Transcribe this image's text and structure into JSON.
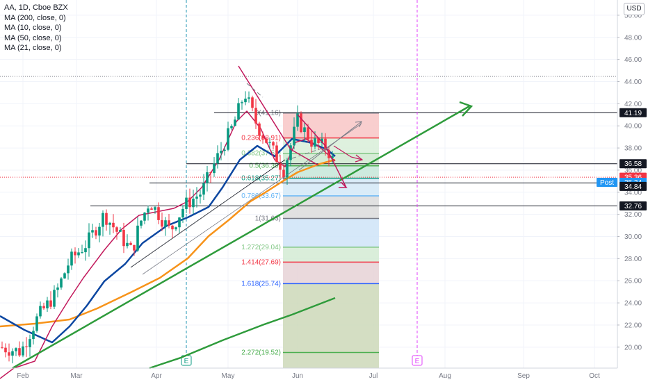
{
  "legend": {
    "title": "AA, 1D, Cboe BZX",
    "ma200": "MA (200, close, 0)",
    "ma10": "MA (10, close, 0)",
    "ma50": "MA (50, close, 0)",
    "ma21": "MA (21, close, 0)"
  },
  "currency_button": "USD",
  "chart_data": {
    "type": "candlestick",
    "symbol": "AA",
    "interval": "1D",
    "exchange": "Cboe BZX",
    "x_ticks": [
      "Feb",
      "Mar",
      "Apr",
      "May",
      "Jun",
      "Jul",
      "Aug",
      "Sep",
      "Oct"
    ],
    "y_ticks": [
      "50.00",
      "48.00",
      "46.00",
      "44.00",
      "42.00",
      "40.00",
      "38.00",
      "36.00",
      "34.00",
      "32.00",
      "30.00",
      "28.00",
      "26.00",
      "24.00",
      "22.00",
      "20.00"
    ],
    "ylim": [
      18.0,
      51.5
    ],
    "price_labels": [
      {
        "text": "41.19",
        "value": 41.19,
        "style": "dark"
      },
      {
        "text": "36.58",
        "value": 36.58,
        "style": "dark"
      },
      {
        "text": "35.36",
        "value": 35.36,
        "style": "red"
      },
      {
        "text": "Post",
        "value": 35.34,
        "style": "blue-tag"
      },
      {
        "text": "35.34",
        "value": 35.34,
        "style": "blue"
      },
      {
        "text": "34.84",
        "value": 34.84,
        "style": "dark"
      },
      {
        "text": "32.76",
        "value": 32.76,
        "style": "dark"
      }
    ],
    "horizontal_levels": [
      41.19,
      36.58,
      34.84,
      32.76
    ],
    "fib_levels": [
      {
        "label": "0(41.16)",
        "value": 41.16,
        "color": "#787b86"
      },
      {
        "label": "0.236(38.91)",
        "value": 38.91,
        "color": "#f23645"
      },
      {
        "label": "0.382(37.52)",
        "value": 37.52,
        "color": "#81c784"
      },
      {
        "label": "0.5(36.39)",
        "value": 36.39,
        "color": "#4caf50"
      },
      {
        "label": "0.618(35.27)",
        "value": 35.27,
        "color": "#089981"
      },
      {
        "label": "0.786(33.67)",
        "value": 33.67,
        "color": "#64b5f6"
      },
      {
        "label": "1(31.63)",
        "value": 31.63,
        "color": "#787b86"
      },
      {
        "label": "1.272(29.04)",
        "value": 29.04,
        "color": "#81c784"
      },
      {
        "label": "1.414(27.69)",
        "value": 27.69,
        "color": "#f23645"
      },
      {
        "label": "1.618(25.74)",
        "value": 25.74,
        "color": "#2962ff"
      },
      {
        "label": "2.272(19.52)",
        "value": 19.52,
        "color": "#4caf50"
      }
    ],
    "event_markers": [
      "E",
      "E"
    ],
    "colors": {
      "up": "#089981",
      "down": "#f23645",
      "ma10": "#c2185b",
      "ma21": "#0d47a1",
      "ma50": "#f7931a",
      "ma200": "#2e9b3b",
      "trend": "#2e9b3b"
    }
  }
}
